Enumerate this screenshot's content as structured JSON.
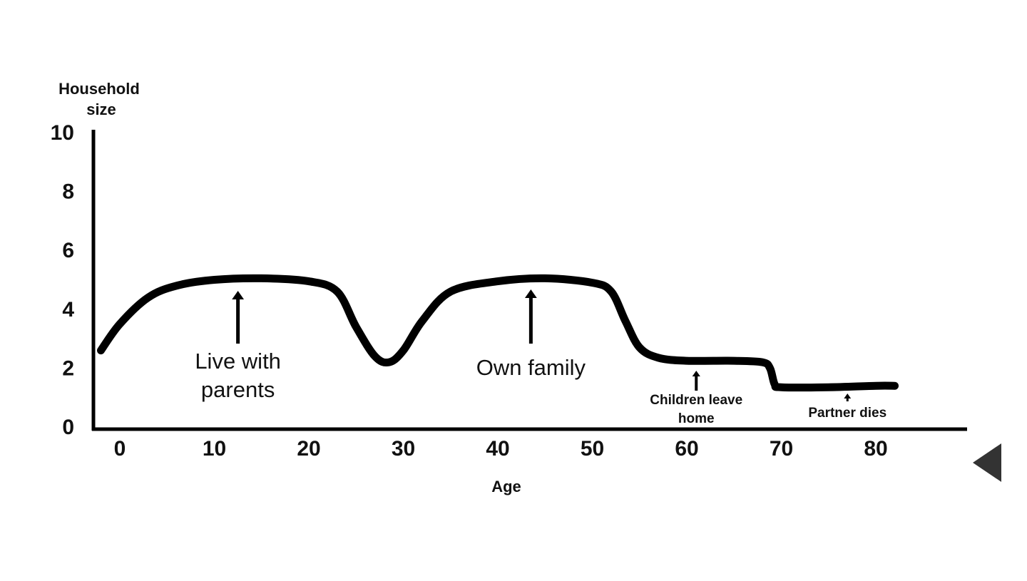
{
  "chart_data": {
    "type": "line",
    "ylabel": "Household size",
    "xlabel": "Age",
    "xlim": [
      -3,
      85
    ],
    "ylim": [
      0,
      10
    ],
    "x_ticks": [
      0,
      10,
      20,
      30,
      40,
      50,
      60,
      70,
      80
    ],
    "y_ticks": [
      0,
      2,
      4,
      6,
      8,
      10
    ],
    "grid": false,
    "legend": "none",
    "series": [
      {
        "x": [
          -2,
          0,
          3,
          6,
          10,
          15,
          20,
          23,
          25,
          27,
          28.5,
          30,
          32,
          35,
          40,
          45,
          50,
          52,
          53.5,
          55,
          57,
          60,
          65,
          68,
          68.8,
          69.3,
          70,
          75,
          80,
          82
        ],
        "y": [
          2.6,
          3.5,
          4.4,
          4.8,
          5.0,
          5.05,
          4.95,
          4.6,
          3.4,
          2.4,
          2.2,
          2.6,
          3.6,
          4.6,
          4.95,
          5.05,
          4.9,
          4.6,
          3.6,
          2.7,
          2.35,
          2.25,
          2.25,
          2.2,
          2.0,
          1.45,
          1.35,
          1.35,
          1.4,
          1.4
        ]
      }
    ],
    "annotations": [
      {
        "text_lines": [
          "Live with",
          "parents"
        ],
        "x": 12.5
      },
      {
        "text_lines": [
          "Own family"
        ],
        "x": 43.5
      },
      {
        "text_lines": [
          "Children leave",
          "home"
        ],
        "x": 61
      },
      {
        "text_lines": [
          "Partner dies"
        ],
        "x": 77
      }
    ]
  },
  "colors": {
    "line": "#000000",
    "text": "#111111",
    "background": "#ffffff",
    "nav_arrow": "#333333"
  },
  "nav": {
    "prev_icon": "triangle-left-icon"
  }
}
